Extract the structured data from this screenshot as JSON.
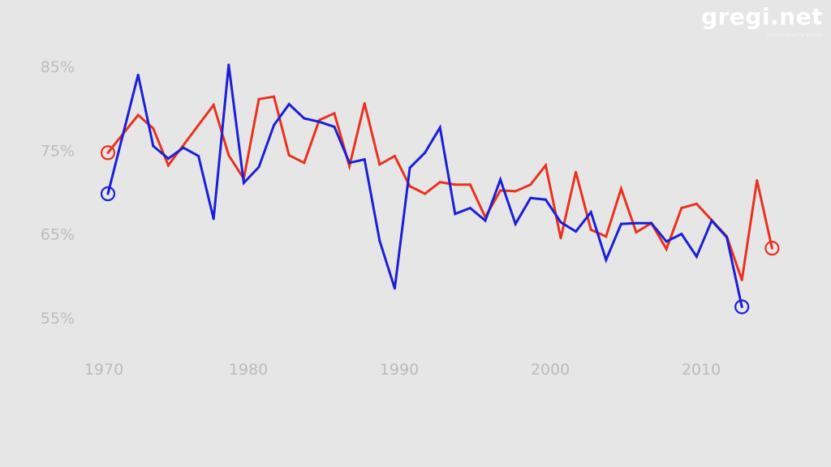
{
  "logo": {
    "text": "gregi.net",
    "tagline": "multikulturny portal"
  },
  "chart_data": {
    "type": "line",
    "title": "",
    "xlabel": "",
    "ylabel": "",
    "xlim": [
      1968,
      2016
    ],
    "ylim": [
      50,
      88
    ],
    "x_ticks": [
      1970,
      1980,
      1990,
      2000,
      2010
    ],
    "x_tick_labels": [
      "1970",
      "1980",
      "1990",
      "2000",
      "2010"
    ],
    "y_ticks": [
      55,
      65,
      75,
      85
    ],
    "y_tick_labels": [
      "55%",
      "65%",
      "75%",
      "85%"
    ],
    "grid": false,
    "legend": "none",
    "series": [
      {
        "name": "red",
        "color": "#e8321e",
        "x": [
          1970,
          1972,
          1973,
          1974,
          1977,
          1978,
          1979,
          1980,
          1981,
          1982,
          1983,
          1984,
          1985,
          1986,
          1987,
          1988,
          1989,
          1990,
          1991,
          1992,
          1993,
          1994,
          1995,
          1996,
          1997,
          1998,
          1999,
          2000,
          2001,
          2002,
          2003,
          2004,
          2005,
          2006,
          2007,
          2008,
          2009,
          2011,
          2012,
          2013,
          2014
        ],
        "values": [
          74.7,
          79.2,
          77.6,
          73.2,
          80.4,
          74.4,
          71.6,
          81.1,
          81.4,
          74.4,
          73.5,
          78.6,
          79.4,
          73.1,
          80.6,
          73.3,
          74.3,
          70.7,
          69.8,
          71.2,
          70.9,
          70.9,
          67.0,
          70.2,
          70.1,
          70.9,
          73.2,
          64.5,
          72.4,
          65.5,
          64.7,
          70.4,
          65.2,
          66.3,
          63.2,
          68.1,
          68.6,
          64.7,
          59.5,
          71.4,
          63.3
        ]
      },
      {
        "name": "blue",
        "color": "#1a1fd8",
        "x": [
          1970,
          1972,
          1973,
          1974,
          1975,
          1976,
          1977,
          1978,
          1979,
          1980,
          1981,
          1982,
          1983,
          1984,
          1985,
          1986,
          1987,
          1988,
          1989,
          1990,
          1991,
          1992,
          1993,
          1994,
          1995,
          1996,
          1997,
          1998,
          1999,
          2000,
          2001,
          2002,
          2003,
          2004,
          2005,
          2006,
          2007,
          2008,
          2009,
          2010,
          2011,
          2012
        ],
        "values": [
          69.8,
          84.0,
          75.5,
          74.0,
          75.3,
          74.3,
          66.8,
          85.2,
          71.1,
          73.0,
          78.0,
          80.5,
          78.8,
          78.4,
          77.8,
          73.5,
          73.9,
          64.2,
          58.5,
          72.9,
          74.7,
          77.7,
          67.4,
          68.1,
          66.6,
          71.5,
          66.2,
          69.3,
          69.1,
          66.4,
          65.3,
          67.6,
          61.9,
          66.2,
          66.3,
          66.3,
          64.1,
          65.0,
          62.3,
          66.6,
          64.6,
          56.3
        ]
      }
    ]
  }
}
